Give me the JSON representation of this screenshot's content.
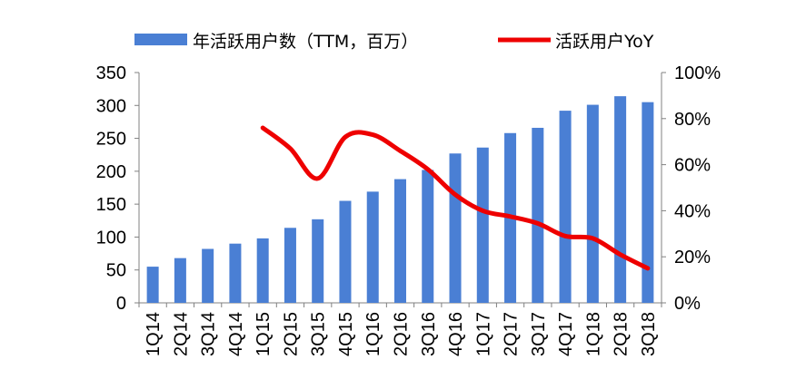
{
  "chart_data": {
    "type": "bar",
    "title": "",
    "xlabel": "",
    "categories": [
      "1Q14",
      "2Q14",
      "3Q14",
      "4Q14",
      "1Q15",
      "2Q15",
      "3Q15",
      "4Q15",
      "1Q16",
      "2Q16",
      "3Q16",
      "4Q16",
      "1Q17",
      "2Q17",
      "3Q17",
      "4Q17",
      "1Q18",
      "2Q18",
      "3Q18"
    ],
    "series": [
      {
        "name": "年活跃用户数（TTM，百万）",
        "type": "bar",
        "axis": "left",
        "color": "#4a7fd4",
        "values": [
          55,
          68,
          82,
          90,
          98,
          114,
          127,
          155,
          169,
          188,
          202,
          227,
          236,
          258,
          266,
          292,
          301,
          314,
          305
        ]
      },
      {
        "name": "活跃用户YoY",
        "type": "line",
        "axis": "right",
        "color": "#ee0000",
        "values": [
          null,
          null,
          null,
          null,
          0.76,
          0.67,
          0.54,
          0.72,
          0.73,
          0.66,
          0.58,
          0.47,
          0.4,
          0.375,
          0.345,
          0.29,
          0.28,
          0.21,
          0.15
        ]
      }
    ],
    "y_left": {
      "ylim": [
        0,
        350
      ],
      "ticks": [
        0,
        50,
        100,
        150,
        200,
        250,
        300,
        350
      ],
      "tick_labels": [
        "0",
        "50",
        "100",
        "150",
        "200",
        "250",
        "300",
        "350"
      ]
    },
    "y_right": {
      "ylim": [
        0,
        1
      ],
      "ticks": [
        0,
        0.2,
        0.4,
        0.6,
        0.8,
        1.0
      ],
      "tick_labels": [
        "0%",
        "20%",
        "40%",
        "60%",
        "80%",
        "100%"
      ]
    },
    "legend": {
      "placement": "top",
      "entries": [
        "年活跃用户数（TTM，百万）",
        "活跃用户YoY"
      ]
    },
    "grid": false
  }
}
